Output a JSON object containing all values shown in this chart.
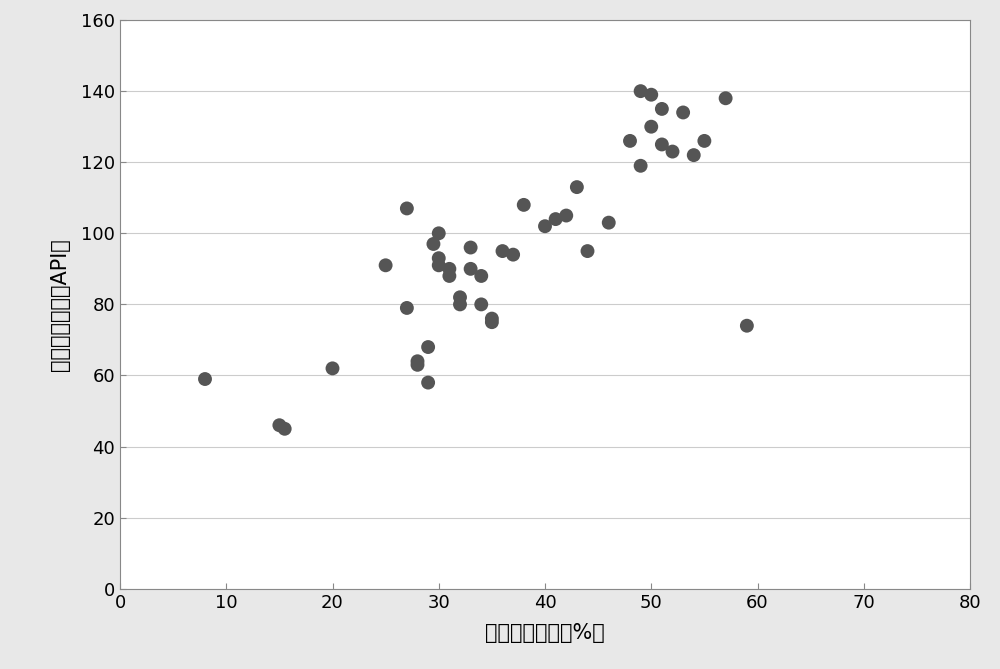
{
  "x": [
    8,
    15,
    15.5,
    20,
    25,
    27,
    27,
    28,
    28,
    29,
    29,
    29.5,
    30,
    30,
    30,
    31,
    31,
    32,
    32,
    33,
    33,
    34,
    34,
    35,
    35,
    36,
    37,
    38,
    40,
    41,
    42,
    43,
    44,
    46,
    48,
    49,
    49,
    50,
    50,
    51,
    51,
    52,
    53,
    54,
    55,
    57,
    59
  ],
  "y": [
    59,
    46,
    45,
    62,
    91,
    79,
    107,
    63,
    64,
    58,
    68,
    97,
    93,
    91,
    100,
    88,
    90,
    82,
    80,
    96,
    90,
    88,
    80,
    76,
    75,
    95,
    94,
    108,
    102,
    104,
    105,
    113,
    95,
    103,
    126,
    140,
    119,
    139,
    130,
    135,
    125,
    123,
    134,
    122,
    126,
    138,
    74
  ],
  "xlabel": "岩心粘土含量（%）",
  "ylabel": "测井无鑰伽玛（API）",
  "xlim": [
    0,
    80
  ],
  "ylim": [
    0,
    160
  ],
  "xticks": [
    0,
    10,
    20,
    30,
    40,
    50,
    60,
    70,
    80
  ],
  "yticks": [
    0,
    20,
    40,
    60,
    80,
    100,
    120,
    140,
    160
  ],
  "marker_color": "#555555",
  "marker_size": 100,
  "background_color": "#ffffff",
  "plot_bg_color": "#ffffff",
  "grid_color": "#cccccc",
  "figure_border_color": "#d0d0d0",
  "tick_label_fontsize": 13,
  "axis_label_fontsize": 15
}
